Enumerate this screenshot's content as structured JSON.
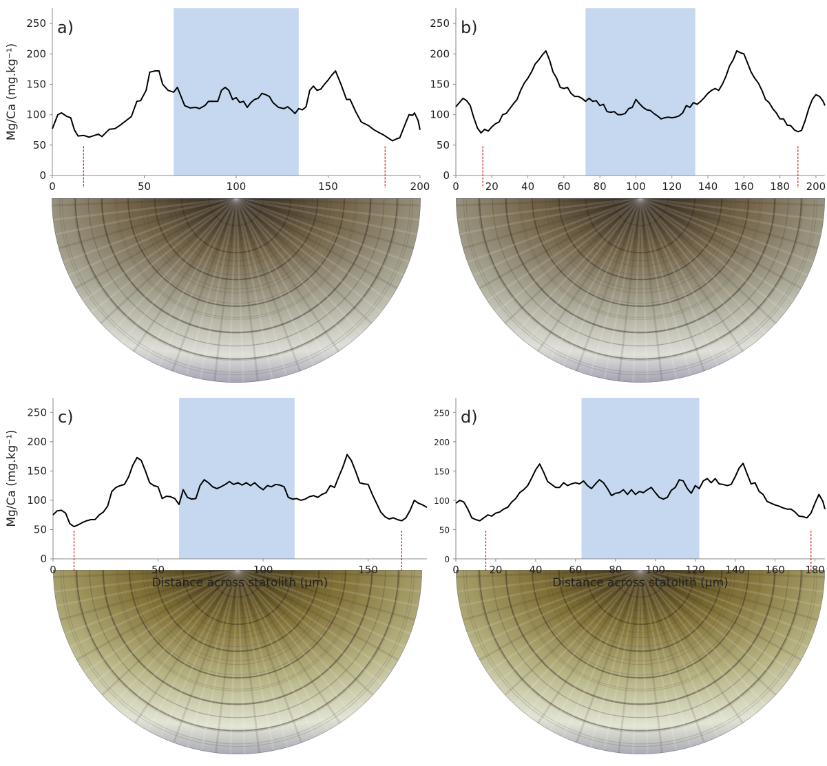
{
  "chart_data": [
    {
      "type": "line",
      "label": "a)",
      "ylabel": "Mg/Ca (mg.kg⁻¹)",
      "x": [
        0,
        3,
        5,
        8,
        10,
        12,
        14,
        17,
        20,
        22,
        25,
        27,
        29,
        31,
        34,
        37,
        40,
        43,
        46,
        48,
        51,
        53,
        56,
        58,
        60,
        63,
        66,
        68,
        70,
        72,
        75,
        78,
        80,
        83,
        85,
        88,
        90,
        92,
        94,
        96,
        98,
        100,
        102,
        104,
        106,
        108,
        110,
        112,
        114,
        116,
        118,
        120,
        123,
        126,
        128,
        130,
        132,
        134,
        136,
        138,
        140,
        142,
        144,
        146,
        148,
        150,
        152,
        154,
        157,
        160,
        162,
        165,
        168,
        170,
        172,
        175,
        178,
        180,
        182,
        185,
        187,
        189,
        190,
        192,
        194,
        196,
        197,
        199,
        200
      ],
      "values": [
        77,
        100,
        103,
        97,
        95,
        75,
        65,
        66,
        63,
        65,
        68,
        64,
        70,
        76,
        77,
        83,
        90,
        97,
        122,
        123,
        140,
        170,
        172,
        172,
        150,
        140,
        137,
        145,
        130,
        115,
        111,
        112,
        110,
        115,
        122,
        122,
        122,
        140,
        145,
        140,
        125,
        128,
        120,
        122,
        112,
        120,
        125,
        127,
        135,
        133,
        130,
        120,
        112,
        110,
        113,
        108,
        102,
        110,
        108,
        113,
        140,
        147,
        140,
        142,
        150,
        157,
        165,
        172,
        150,
        125,
        125,
        105,
        88,
        85,
        82,
        75,
        70,
        67,
        63,
        57,
        60,
        62,
        70,
        85,
        100,
        99,
        103,
        90,
        75
      ],
      "color": "#000000",
      "shade_color": "#c6d8f0",
      "marker_color": "#d62020",
      "shaded": [
        66,
        134
      ],
      "markers": [
        17,
        181
      ],
      "xlim": [
        0,
        200
      ],
      "xticks": [
        0,
        50,
        100,
        150,
        200
      ],
      "ylim": [
        0,
        275
      ],
      "yticks": [
        0,
        50,
        100,
        150,
        200,
        250
      ]
    },
    {
      "type": "line",
      "label": "b)",
      "x": [
        0,
        2,
        4,
        6,
        8,
        10,
        12,
        14,
        16,
        18,
        20,
        22,
        24,
        26,
        28,
        30,
        32,
        34,
        36,
        38,
        40,
        42,
        44,
        46,
        48,
        50,
        52,
        54,
        56,
        58,
        60,
        62,
        64,
        66,
        68,
        70,
        72,
        74,
        76,
        78,
        80,
        82,
        84,
        86,
        88,
        90,
        92,
        94,
        96,
        98,
        100,
        102,
        104,
        106,
        108,
        110,
        112,
        114,
        116,
        118,
        120,
        122,
        124,
        126,
        128,
        130,
        132,
        134,
        136,
        138,
        140,
        142,
        144,
        146,
        148,
        150,
        152,
        154,
        156,
        158,
        160,
        162,
        164,
        166,
        168,
        170,
        172,
        174,
        176,
        178,
        180,
        182,
        184,
        186,
        188,
        190,
        192,
        194,
        196,
        198,
        200,
        202,
        204,
        205
      ],
      "values": [
        113,
        120,
        127,
        123,
        115,
        95,
        78,
        70,
        76,
        73,
        80,
        85,
        88,
        100,
        102,
        110,
        118,
        125,
        140,
        152,
        160,
        170,
        183,
        190,
        198,
        205,
        190,
        170,
        160,
        145,
        143,
        145,
        135,
        130,
        130,
        127,
        122,
        127,
        122,
        123,
        115,
        117,
        105,
        104,
        105,
        100,
        100,
        102,
        110,
        112,
        125,
        118,
        112,
        108,
        107,
        102,
        98,
        93,
        95,
        96,
        95,
        96,
        98,
        103,
        115,
        112,
        120,
        117,
        122,
        128,
        135,
        140,
        143,
        140,
        150,
        163,
        180,
        190,
        205,
        202,
        200,
        185,
        170,
        160,
        152,
        140,
        125,
        120,
        110,
        103,
        93,
        93,
        83,
        82,
        75,
        72,
        74,
        90,
        110,
        125,
        133,
        130,
        122,
        115
      ],
      "color": "#000000",
      "shade_color": "#c6d8f0",
      "marker_color": "#d62020",
      "shaded": [
        72,
        133
      ],
      "markers": [
        15,
        190
      ],
      "xlim": [
        0,
        205
      ],
      "xticks": [
        0,
        20,
        40,
        60,
        80,
        100,
        120,
        140,
        160,
        180,
        200
      ],
      "ylim": [
        0,
        275
      ],
      "yticks": [
        0,
        50,
        100,
        150,
        200,
        250
      ]
    },
    {
      "type": "line",
      "label": "c)",
      "ylabel": "Mg/Ca (mg.kg⁻¹)",
      "xlabel": "Distance across statolith (µm)",
      "x": [
        0,
        2,
        4,
        6,
        8,
        10,
        12,
        14,
        16,
        18,
        20,
        22,
        24,
        26,
        28,
        30,
        32,
        34,
        36,
        38,
        40,
        42,
        44,
        46,
        48,
        50,
        52,
        54,
        56,
        58,
        60,
        62,
        64,
        66,
        68,
        70,
        72,
        74,
        76,
        78,
        80,
        82,
        84,
        86,
        88,
        90,
        92,
        94,
        96,
        98,
        100,
        102,
        104,
        106,
        108,
        110,
        112,
        114,
        116,
        118,
        120,
        122,
        124,
        126,
        128,
        130,
        132,
        134,
        136,
        138,
        140,
        142,
        144,
        146,
        148,
        150,
        152,
        154,
        156,
        158,
        160,
        162,
        164,
        166,
        168,
        170,
        172,
        174,
        176,
        178
      ],
      "values": [
        75,
        82,
        83,
        78,
        60,
        55,
        58,
        62,
        65,
        67,
        67,
        75,
        80,
        90,
        115,
        122,
        125,
        127,
        140,
        160,
        173,
        168,
        150,
        130,
        125,
        123,
        103,
        107,
        106,
        103,
        93,
        118,
        105,
        102,
        103,
        125,
        135,
        130,
        123,
        120,
        123,
        127,
        132,
        127,
        130,
        126,
        130,
        125,
        130,
        123,
        118,
        125,
        123,
        127,
        126,
        123,
        105,
        102,
        103,
        100,
        102,
        106,
        108,
        105,
        110,
        113,
        125,
        122,
        140,
        157,
        178,
        168,
        150,
        130,
        128,
        127,
        110,
        95,
        80,
        72,
        68,
        70,
        67,
        65,
        70,
        83,
        100,
        95,
        92,
        88
      ],
      "color": "#000000",
      "shade_color": "#c6d8f0",
      "marker_color": "#d62020",
      "shaded": [
        60,
        115
      ],
      "markers": [
        10,
        166
      ],
      "xlim": [
        0,
        178
      ],
      "xticks": [
        0,
        50,
        100,
        150
      ],
      "ylim": [
        0,
        275
      ],
      "yticks": [
        0,
        50,
        100,
        150,
        200,
        250
      ]
    },
    {
      "type": "line",
      "label": "d)",
      "xlabel": "Distance across statolith (µm)",
      "x": [
        0,
        2,
        4,
        6,
        8,
        10,
        12,
        14,
        16,
        18,
        20,
        22,
        24,
        26,
        28,
        30,
        32,
        34,
        36,
        38,
        40,
        42,
        44,
        46,
        48,
        50,
        52,
        54,
        56,
        58,
        60,
        62,
        64,
        66,
        68,
        70,
        72,
        74,
        76,
        78,
        80,
        82,
        84,
        86,
        88,
        90,
        92,
        94,
        96,
        98,
        100,
        102,
        104,
        106,
        108,
        110,
        112,
        114,
        116,
        118,
        120,
        122,
        124,
        126,
        128,
        130,
        132,
        134,
        136,
        138,
        140,
        142,
        144,
        146,
        148,
        150,
        152,
        154,
        156,
        158,
        160,
        162,
        164,
        166,
        168,
        170,
        172,
        174,
        176,
        178,
        180,
        182,
        184,
        185
      ],
      "values": [
        95,
        100,
        97,
        85,
        70,
        67,
        65,
        70,
        75,
        73,
        78,
        80,
        85,
        88,
        97,
        103,
        113,
        118,
        125,
        138,
        152,
        162,
        148,
        132,
        127,
        122,
        122,
        130,
        125,
        128,
        130,
        128,
        133,
        125,
        120,
        128,
        135,
        130,
        120,
        108,
        112,
        113,
        118,
        110,
        118,
        110,
        115,
        113,
        118,
        122,
        113,
        105,
        102,
        105,
        117,
        122,
        135,
        133,
        120,
        112,
        125,
        120,
        133,
        137,
        130,
        137,
        128,
        127,
        125,
        127,
        140,
        155,
        163,
        145,
        128,
        130,
        115,
        110,
        98,
        95,
        92,
        90,
        87,
        85,
        85,
        80,
        73,
        72,
        70,
        78,
        95,
        110,
        98,
        85
      ],
      "color": "#000000",
      "shade_color": "#c6d8f0",
      "marker_color": "#d62020",
      "shaded": [
        63,
        122
      ],
      "markers": [
        15,
        178
      ],
      "xlim": [
        0,
        185
      ],
      "xticks": [
        0,
        20,
        40,
        60,
        80,
        100,
        120,
        140,
        160,
        180
      ],
      "ylim": [
        0,
        275
      ],
      "yticks": [
        0,
        50,
        100,
        150,
        200,
        250
      ]
    }
  ]
}
